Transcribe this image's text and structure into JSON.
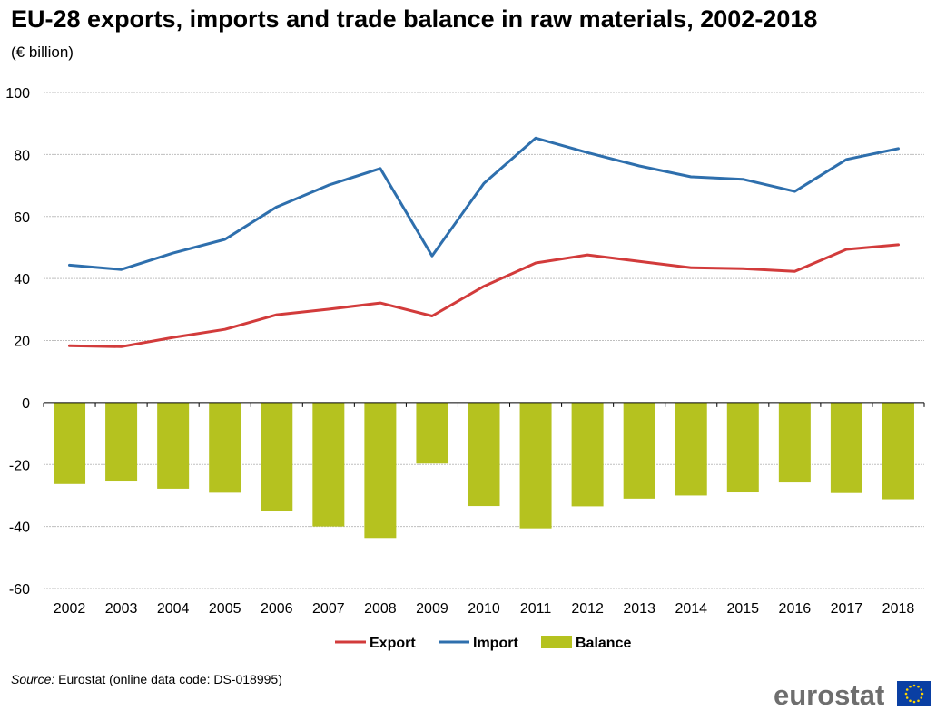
{
  "title": "EU-28 exports, imports and trade balance in raw materials, 2002-2018",
  "subtitle": "(€ billion)",
  "source_label": "Source:",
  "source_text": "Eurostat (online data code: DS-018995)",
  "logo_text": "eurostat",
  "colors": {
    "export": "#d23b3b",
    "import": "#2e6fad",
    "balance": "#b5c21f",
    "grid": "#bfbfbf",
    "axis": "#000000",
    "flag_bg": "#0a3fa3",
    "flag_stars": "#ffd400"
  },
  "chart_data": {
    "type": "bar",
    "categories": [
      "2002",
      "2003",
      "2004",
      "2005",
      "2006",
      "2007",
      "2008",
      "2009",
      "2010",
      "2011",
      "2012",
      "2013",
      "2014",
      "2015",
      "2016",
      "2017",
      "2018"
    ],
    "series": [
      {
        "name": "Balance",
        "type": "bar",
        "values": [
          -26.3,
          -25.2,
          -27.8,
          -29.1,
          -34.9,
          -40.0,
          -43.7,
          -19.7,
          -33.4,
          -40.6,
          -33.5,
          -31.0,
          -30.0,
          -29.0,
          -25.8,
          -29.2,
          -31.2
        ]
      },
      {
        "name": "Export",
        "type": "line",
        "values": [
          18.3,
          18.0,
          21.0,
          23.6,
          28.3,
          30.1,
          32.1,
          27.9,
          37.5,
          45.0,
          47.6,
          45.5,
          43.5,
          43.2,
          42.3,
          49.4,
          50.9
        ]
      },
      {
        "name": "Import",
        "type": "line",
        "values": [
          44.3,
          42.9,
          48.2,
          52.6,
          63.1,
          70.1,
          75.5,
          47.3,
          70.7,
          85.3,
          80.6,
          76.3,
          72.8,
          72.0,
          68.1,
          78.4,
          81.9
        ]
      }
    ],
    "legend_order": [
      "Export",
      "Import",
      "Balance"
    ],
    "legend_position": "bottom",
    "ylim": [
      -60,
      100
    ],
    "yticks": [
      -60,
      -40,
      -20,
      0,
      20,
      40,
      60,
      80,
      100
    ],
    "grid": true,
    "xlabel": "",
    "ylabel": ""
  }
}
